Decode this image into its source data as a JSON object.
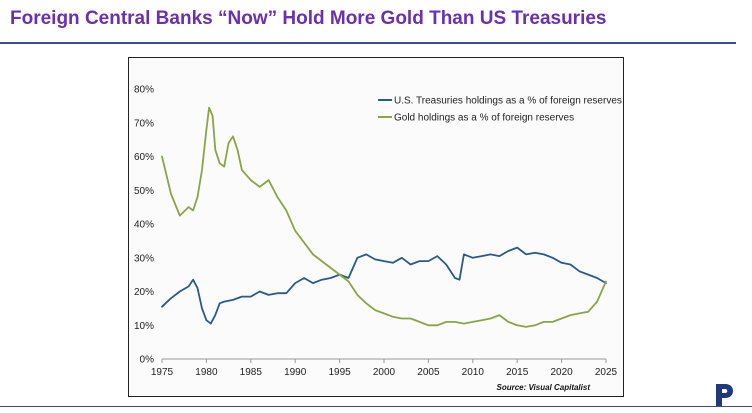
{
  "slide": {
    "title": "Foreign Central Banks “Now” Hold More Gold Than US Treasuries"
  },
  "logo": {
    "icon": "p-monogram-logo-icon"
  },
  "colors": {
    "title": "#6a2fb2",
    "rule": "#3c4c8f",
    "treasuries": "#2a5a8c",
    "gold": "#8aa545",
    "axis": "#999999",
    "tick_text": "#222222"
  },
  "chart_data": {
    "type": "line",
    "title": "",
    "xlabel": "",
    "ylabel": "",
    "xlim": [
      1975,
      2025
    ],
    "ylim": [
      0,
      80
    ],
    "y_ticks": [
      0,
      10,
      20,
      30,
      40,
      50,
      60,
      70,
      80
    ],
    "y_tick_labels": [
      "0%",
      "10%",
      "20%",
      "30%",
      "40%",
      "50%",
      "60%",
      "70%",
      "80%"
    ],
    "x_ticks": [
      1975,
      1980,
      1985,
      1990,
      1995,
      2000,
      2005,
      2010,
      2015,
      2020,
      2025
    ],
    "x_tick_labels": [
      "1975",
      "1980",
      "1985",
      "1990",
      "1995",
      "2000",
      "2005",
      "2010",
      "2015",
      "2020",
      "2025"
    ],
    "grid": false,
    "legend_position": "top-right",
    "source": "Source: Visual Capitalist",
    "series": [
      {
        "name": "U.S. Treasuries holdings as a % of foreign reserves",
        "color": "#2a5a8c",
        "x": [
          1975,
          1976,
          1977,
          1978,
          1978.5,
          1979,
          1979.5,
          1980,
          1980.5,
          1981,
          1981.5,
          1982,
          1983,
          1984,
          1985,
          1986,
          1987,
          1988,
          1989,
          1990,
          1991,
          1992,
          1993,
          1994,
          1995,
          1996,
          1997,
          1998,
          1999,
          2000,
          2001,
          2002,
          2003,
          2004,
          2005,
          2006,
          2007,
          2008,
          2008.5,
          2009,
          2010,
          2011,
          2012,
          2013,
          2014,
          2015,
          2016,
          2017,
          2018,
          2019,
          2020,
          2021,
          2022,
          2023,
          2024,
          2025
        ],
        "y": [
          15.5,
          18,
          20,
          21.5,
          23.5,
          21,
          15,
          11.5,
          10.5,
          13,
          16.5,
          17,
          17.5,
          18.5,
          18.5,
          20,
          19,
          19.5,
          19.5,
          22.5,
          24,
          22.5,
          23.5,
          24,
          25,
          24,
          30,
          31,
          29.5,
          29,
          28.5,
          30,
          28,
          29,
          29,
          30.5,
          28,
          24,
          23.5,
          31,
          30,
          30.5,
          31,
          30.5,
          32,
          33,
          31,
          31.5,
          31,
          30,
          28.5,
          28,
          26,
          25,
          24,
          22.5
        ]
      },
      {
        "name": "Gold holdings as a % of foreign reserves",
        "color": "#8aa545",
        "x": [
          1975,
          1976,
          1977,
          1978,
          1978.5,
          1979,
          1979.5,
          1980,
          1980.3,
          1980.7,
          1981,
          1981.5,
          1982,
          1982.5,
          1983,
          1983.5,
          1984,
          1985,
          1986,
          1987,
          1988,
          1989,
          1990,
          1991,
          1992,
          1993,
          1994,
          1995,
          1996,
          1997,
          1998,
          1999,
          2000,
          2001,
          2002,
          2003,
          2004,
          2005,
          2006,
          2007,
          2008,
          2009,
          2010,
          2011,
          2012,
          2013,
          2014,
          2015,
          2016,
          2017,
          2018,
          2019,
          2020,
          2021,
          2022,
          2023,
          2024,
          2025
        ],
        "y": [
          60,
          49,
          42.5,
          45,
          44,
          48,
          56,
          68,
          74.5,
          72,
          62,
          58,
          57,
          64,
          66,
          62,
          56,
          53,
          51,
          53,
          48,
          44,
          38,
          34.5,
          31,
          29,
          27,
          25,
          23,
          19,
          16.5,
          14.5,
          13.5,
          12.5,
          12,
          12,
          11,
          10,
          10,
          11,
          11,
          10.5,
          11,
          11.5,
          12,
          13,
          11,
          10,
          9.5,
          10,
          11,
          11,
          12,
          13,
          13.5,
          14,
          17,
          23
        ]
      }
    ]
  }
}
